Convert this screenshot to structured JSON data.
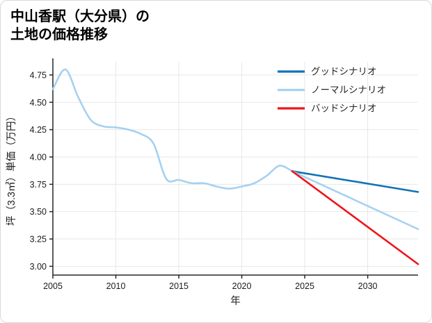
{
  "title": {
    "line1": "中山香駅（大分県）の",
    "line2": "土地の価格推移"
  },
  "chart_data": {
    "type": "line",
    "xlabel": "年",
    "ylabel": "坪（3.3㎡）単価（万円）",
    "xlim": [
      2005,
      2034
    ],
    "ylim": [
      2.92,
      4.87
    ],
    "xticks": [
      2005,
      2010,
      2015,
      2020,
      2025,
      2030
    ],
    "yticks": [
      3.0,
      3.25,
      3.5,
      3.75,
      4.0,
      4.25,
      4.5,
      4.75
    ],
    "grid": true,
    "legend_position": "upper-right-inside",
    "colors": {
      "good": "#1272b6",
      "normal": "#a6d1f0",
      "bad": "#ef1418",
      "grid": "#e7e7e7",
      "axis": "#262626",
      "text": "#1a1a1a",
      "legend_text": "#262626"
    },
    "series": [
      {
        "id": "history",
        "color": "#a6d1f0",
        "smooth": true,
        "x": [
          2005,
          2006,
          2007,
          2008,
          2009,
          2010,
          2011,
          2012,
          2013,
          2014,
          2015,
          2016,
          2017,
          2018,
          2019,
          2020,
          2021,
          2022,
          2023,
          2024
        ],
        "y": [
          4.62,
          4.8,
          4.55,
          4.34,
          4.28,
          4.27,
          4.25,
          4.21,
          4.12,
          3.8,
          3.79,
          3.76,
          3.76,
          3.73,
          3.71,
          3.73,
          3.76,
          3.83,
          3.92,
          3.87
        ]
      },
      {
        "id": "good",
        "color": "#1272b6",
        "smooth": false,
        "x": [
          2024,
          2034
        ],
        "y": [
          3.87,
          3.68
        ]
      },
      {
        "id": "normal",
        "color": "#a6d1f0",
        "smooth": false,
        "x": [
          2024,
          2034
        ],
        "y": [
          3.87,
          3.34
        ]
      },
      {
        "id": "bad",
        "color": "#ef1418",
        "smooth": false,
        "x": [
          2024,
          2034
        ],
        "y": [
          3.87,
          3.02
        ]
      }
    ],
    "legend": [
      {
        "label": "グッドシナリオ",
        "color": "#1272b6"
      },
      {
        "label": "ノーマルシナリオ",
        "color": "#a6d1f0"
      },
      {
        "label": "バッドシナリオ",
        "color": "#ef1418"
      }
    ]
  }
}
